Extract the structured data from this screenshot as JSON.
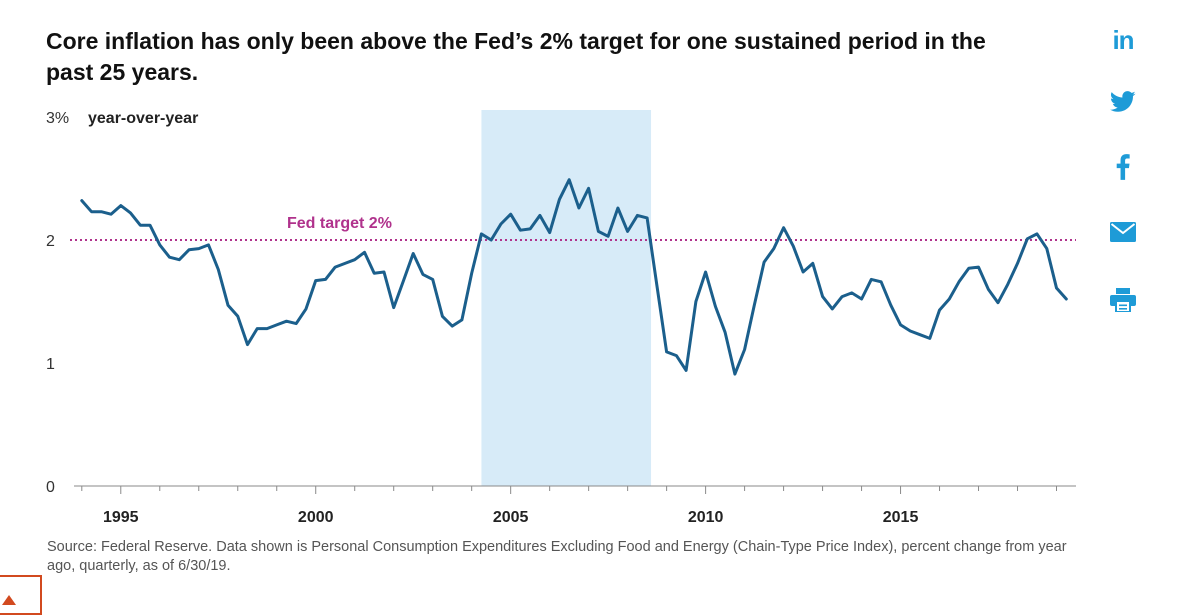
{
  "title": "Core inflation has only been above the Fed’s 2% target for one sustained period in the past 25 years.",
  "source_note": "Source: Federal Reserve. Data shown is Personal Consumption Expenditures Excluding Food and Energy (Chain-Type Price Index), percent change from year ago, quarterly, as of 6/30/19.",
  "share": {
    "linkedin_glyph": "in",
    "icons": [
      "linkedin-icon",
      "twitter-icon",
      "facebook-icon",
      "email-icon",
      "print-icon"
    ],
    "color": "#1e9bd7"
  },
  "chart_data": {
    "type": "line",
    "title": "Core inflation has only been above the Fed’s 2% target for one sustained period in the past 25 years.",
    "ylabel": "year-over-year",
    "ylim": [
      0,
      3
    ],
    "yticks": [
      0,
      1,
      2,
      3
    ],
    "ytick_labels": [
      "0",
      "1",
      "2",
      "3%"
    ],
    "xlim": [
      1993.8,
      2019.5
    ],
    "xticks": [
      1995,
      2000,
      2005,
      2010,
      2015
    ],
    "xtick_labels": [
      "1995",
      "2000",
      "2005",
      "2010",
      "2015"
    ],
    "grid": false,
    "reference_line": {
      "value": 2,
      "label": "Fed target 2%",
      "color": "#b0328c",
      "style": "dotted"
    },
    "highlight_band": {
      "x_start": 2004.25,
      "x_end": 2008.6,
      "color": "#d7ebf8"
    },
    "line_color": "#1b5f8c",
    "series": [
      {
        "x": [
          1994.0,
          1994.25,
          1994.5,
          1994.75,
          1995.0,
          1995.25,
          1995.5,
          1995.75,
          1996.0,
          1996.25,
          1996.5,
          1996.75,
          1997.0,
          1997.25,
          1997.5,
          1997.75,
          1998.0,
          1998.25,
          1998.5,
          1998.75,
          1999.0,
          1999.25,
          1999.5,
          1999.75,
          2000.0,
          2000.25,
          2000.5,
          2000.75,
          2001.0,
          2001.25,
          2001.5,
          2001.75,
          2002.0,
          2002.25,
          2002.5,
          2002.75,
          2003.0,
          2003.25,
          2003.5,
          2003.75,
          2004.0,
          2004.25,
          2004.5,
          2004.75,
          2005.0,
          2005.25,
          2005.5,
          2005.75,
          2006.0,
          2006.25,
          2006.5,
          2006.75,
          2007.0,
          2007.25,
          2007.5,
          2007.75,
          2008.0,
          2008.25,
          2008.5,
          2008.75,
          2009.0,
          2009.25,
          2009.5,
          2009.75,
          2010.0,
          2010.25,
          2010.5,
          2010.75,
          2011.0,
          2011.25,
          2011.5,
          2011.75,
          2012.0,
          2012.25,
          2012.5,
          2012.75,
          2013.0,
          2013.25,
          2013.5,
          2013.75,
          2014.0,
          2014.25,
          2014.5,
          2014.75,
          2015.0,
          2015.25,
          2015.5,
          2015.75,
          2016.0,
          2016.25,
          2016.5,
          2016.75,
          2017.0,
          2017.25,
          2017.5,
          2017.75,
          2018.0,
          2018.25,
          2018.5,
          2018.75,
          2019.0,
          2019.25
        ],
        "values": [
          2.32,
          2.23,
          2.23,
          2.21,
          2.28,
          2.22,
          2.12,
          2.12,
          1.96,
          1.86,
          1.84,
          1.92,
          1.93,
          1.96,
          1.76,
          1.47,
          1.38,
          1.15,
          1.28,
          1.28,
          1.31,
          1.34,
          1.32,
          1.44,
          1.67,
          1.68,
          1.78,
          1.81,
          1.84,
          1.9,
          1.73,
          1.74,
          1.45,
          1.67,
          1.89,
          1.72,
          1.68,
          1.38,
          1.3,
          1.35,
          1.73,
          2.05,
          2.0,
          2.13,
          2.21,
          2.08,
          2.09,
          2.2,
          2.06,
          2.33,
          2.49,
          2.26,
          2.42,
          2.07,
          2.03,
          2.26,
          2.07,
          2.2,
          2.18,
          1.63,
          1.09,
          1.06,
          0.94,
          1.5,
          1.74,
          1.46,
          1.25,
          0.91,
          1.11,
          1.47,
          1.82,
          1.93,
          2.1,
          1.95,
          1.74,
          1.81,
          1.54,
          1.44,
          1.54,
          1.57,
          1.52,
          1.68,
          1.66,
          1.47,
          1.31,
          1.26,
          1.23,
          1.2,
          1.43,
          1.52,
          1.66,
          1.77,
          1.78,
          1.6,
          1.49,
          1.64,
          1.81,
          2.01,
          2.05,
          1.93,
          1.61,
          1.52
        ]
      }
    ]
  }
}
